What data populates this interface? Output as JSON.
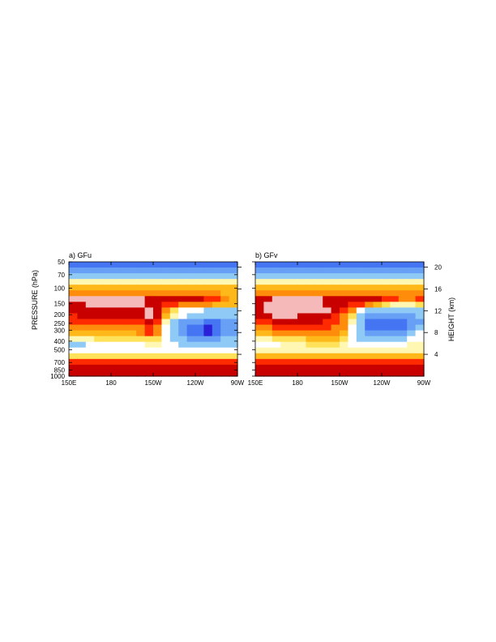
{
  "chart_data": [
    {
      "type": "heatmap",
      "panel_label": "a) GFu",
      "x_ticks": [
        "150E",
        "180",
        "150W",
        "120W",
        "90W"
      ],
      "left_axis": {
        "label": "PRESSURE (hPa)",
        "ticks": [
          "50",
          "70",
          "100",
          "150",
          "200",
          "250",
          "300",
          "400",
          "500",
          "700",
          "850",
          "1000"
        ]
      },
      "levels": [
        "#2a20d8",
        "#4575f2",
        "#67a0f5",
        "#8fcaf6",
        "#ffffff",
        "#fff7b2",
        "#ffe25a",
        "#ffb81a",
        "#ff8c0a",
        "#ff2a00",
        "#c80000",
        "#f5b9b9"
      ],
      "field": [
        [
          1,
          1,
          1,
          1,
          1,
          1,
          1,
          1,
          1,
          1,
          1,
          1,
          1,
          1,
          1,
          1,
          1,
          1,
          1,
          1
        ],
        [
          2,
          2,
          2,
          2,
          2,
          2,
          2,
          2,
          2,
          2,
          2,
          2,
          2,
          2,
          2,
          2,
          2,
          2,
          2,
          2
        ],
        [
          3,
          3,
          3,
          3,
          3,
          3,
          3,
          3,
          3,
          3,
          3,
          3,
          3,
          3,
          3,
          3,
          3,
          3,
          3,
          3
        ],
        [
          5,
          5,
          5,
          5,
          5,
          5,
          5,
          5,
          5,
          5,
          5,
          5,
          5,
          5,
          5,
          5,
          5,
          5,
          5,
          5
        ],
        [
          7,
          7,
          7,
          7,
          7,
          7,
          7,
          7,
          7,
          7,
          7,
          7,
          7,
          7,
          7,
          7,
          7,
          7,
          7,
          7
        ],
        [
          8,
          8,
          8,
          8,
          8,
          8,
          8,
          8,
          8,
          8,
          8,
          8,
          8,
          8,
          8,
          8,
          8,
          8,
          7,
          7
        ],
        [
          11,
          11,
          11,
          11,
          11,
          11,
          11,
          11,
          11,
          10,
          10,
          10,
          10,
          10,
          10,
          10,
          9,
          9,
          8,
          7
        ],
        [
          10,
          10,
          11,
          11,
          11,
          11,
          11,
          11,
          11,
          10,
          10,
          9,
          9,
          8,
          8,
          8,
          8,
          7,
          7,
          7
        ],
        [
          10,
          10,
          10,
          10,
          10,
          10,
          10,
          10,
          10,
          11,
          10,
          8,
          6,
          4,
          4,
          4,
          3,
          3,
          3,
          3
        ],
        [
          9,
          10,
          10,
          10,
          10,
          10,
          10,
          10,
          10,
          11,
          10,
          7,
          5,
          4,
          3,
          3,
          3,
          3,
          3,
          3
        ],
        [
          9,
          9,
          9,
          9,
          9,
          9,
          9,
          9,
          9,
          10,
          9,
          5,
          3,
          2,
          2,
          2,
          1,
          1,
          2,
          2
        ],
        [
          8,
          8,
          8,
          8,
          8,
          8,
          8,
          8,
          8,
          9,
          8,
          4,
          3,
          2,
          1,
          1,
          0,
          1,
          2,
          2
        ],
        [
          7,
          7,
          7,
          7,
          7,
          7,
          7,
          7,
          8,
          9,
          8,
          4,
          3,
          2,
          1,
          1,
          0,
          1,
          2,
          2
        ],
        [
          5,
          5,
          5,
          6,
          6,
          6,
          6,
          6,
          6,
          6,
          6,
          4,
          3,
          3,
          2,
          2,
          2,
          2,
          3,
          3
        ],
        [
          3,
          3,
          4,
          4,
          4,
          4,
          4,
          4,
          4,
          5,
          5,
          4,
          4,
          3,
          3,
          3,
          3,
          3,
          3,
          3
        ],
        [
          4,
          4,
          4,
          4,
          4,
          4,
          4,
          4,
          4,
          4,
          4,
          4,
          4,
          4,
          4,
          4,
          4,
          4,
          4,
          4
        ],
        [
          6,
          6,
          6,
          6,
          6,
          6,
          6,
          6,
          6,
          6,
          6,
          6,
          6,
          6,
          6,
          6,
          6,
          6,
          6,
          6
        ],
        [
          9,
          9,
          9,
          9,
          9,
          9,
          9,
          9,
          9,
          9,
          9,
          9,
          9,
          9,
          9,
          9,
          9,
          9,
          9,
          9
        ],
        [
          10,
          10,
          10,
          10,
          10,
          10,
          10,
          10,
          10,
          10,
          10,
          10,
          10,
          10,
          10,
          10,
          10,
          10,
          10,
          10
        ],
        [
          10,
          10,
          10,
          10,
          10,
          10,
          10,
          10,
          10,
          10,
          10,
          10,
          10,
          10,
          10,
          10,
          10,
          10,
          10,
          10
        ]
      ]
    },
    {
      "type": "heatmap",
      "panel_label": "b) GFv",
      "x_ticks": [
        "150E",
        "180",
        "150W",
        "120W",
        "90W"
      ],
      "right_axis": {
        "label": "HEIGHT (km)",
        "ticks": [
          "20",
          "16",
          "12",
          "8",
          "4"
        ]
      },
      "levels": [
        "#2a20d8",
        "#4575f2",
        "#67a0f5",
        "#8fcaf6",
        "#ffffff",
        "#fff7b2",
        "#ffe25a",
        "#ffb81a",
        "#ff8c0a",
        "#ff2a00",
        "#c80000",
        "#f5b9b9"
      ],
      "field": [
        [
          1,
          1,
          1,
          1,
          1,
          1,
          1,
          1,
          1,
          1,
          1,
          1,
          1,
          1,
          1,
          1,
          1,
          1,
          1,
          1
        ],
        [
          2,
          2,
          2,
          2,
          2,
          2,
          2,
          2,
          2,
          2,
          2,
          2,
          2,
          2,
          2,
          2,
          2,
          2,
          2,
          2
        ],
        [
          3,
          3,
          3,
          3,
          3,
          3,
          3,
          3,
          3,
          3,
          3,
          3,
          3,
          3,
          3,
          3,
          3,
          3,
          3,
          3
        ],
        [
          5,
          5,
          5,
          5,
          5,
          5,
          5,
          5,
          5,
          5,
          5,
          5,
          5,
          5,
          5,
          5,
          5,
          5,
          5,
          5
        ],
        [
          7,
          7,
          7,
          7,
          7,
          7,
          7,
          7,
          7,
          7,
          7,
          7,
          7,
          7,
          7,
          7,
          7,
          7,
          7,
          7
        ],
        [
          8,
          8,
          8,
          8,
          8,
          8,
          8,
          8,
          8,
          8,
          8,
          8,
          8,
          8,
          8,
          8,
          8,
          8,
          8,
          8
        ],
        [
          10,
          10,
          11,
          11,
          11,
          11,
          11,
          11,
          10,
          10,
          10,
          10,
          10,
          10,
          10,
          9,
          9,
          8,
          8,
          9
        ],
        [
          10,
          11,
          11,
          11,
          11,
          11,
          11,
          11,
          10,
          10,
          10,
          9,
          9,
          8,
          7,
          6,
          5,
          5,
          5,
          6
        ],
        [
          10,
          11,
          11,
          11,
          11,
          11,
          11,
          11,
          11,
          10,
          9,
          8,
          4,
          3,
          3,
          3,
          3,
          3,
          3,
          3
        ],
        [
          10,
          10,
          11,
          11,
          11,
          10,
          10,
          10,
          10,
          9,
          8,
          6,
          3,
          2,
          2,
          2,
          2,
          2,
          2,
          3
        ],
        [
          9,
          9,
          10,
          10,
          10,
          10,
          10,
          10,
          9,
          9,
          8,
          5,
          3,
          1,
          1,
          1,
          1,
          1,
          2,
          2
        ],
        [
          8,
          8,
          9,
          9,
          9,
          9,
          9,
          9,
          9,
          8,
          8,
          4,
          3,
          1,
          1,
          1,
          1,
          1,
          2,
          3
        ],
        [
          7,
          7,
          8,
          8,
          8,
          8,
          8,
          8,
          8,
          8,
          7,
          4,
          3,
          2,
          2,
          2,
          2,
          2,
          3,
          4
        ],
        [
          5,
          5,
          6,
          6,
          6,
          6,
          7,
          7,
          7,
          7,
          6,
          4,
          3,
          3,
          3,
          3,
          3,
          3,
          4,
          4
        ],
        [
          4,
          4,
          4,
          5,
          5,
          5,
          6,
          6,
          6,
          6,
          5,
          4,
          4,
          4,
          4,
          4,
          4,
          4,
          5,
          5
        ],
        [
          5,
          5,
          5,
          5,
          5,
          5,
          5,
          5,
          5,
          5,
          5,
          5,
          5,
          5,
          5,
          5,
          5,
          5,
          5,
          5
        ],
        [
          7,
          7,
          7,
          7,
          7,
          7,
          7,
          7,
          7,
          7,
          7,
          7,
          7,
          7,
          7,
          7,
          7,
          7,
          7,
          7
        ],
        [
          9,
          9,
          9,
          9,
          9,
          9,
          9,
          9,
          9,
          9,
          9,
          9,
          9,
          9,
          9,
          9,
          9,
          9,
          9,
          9
        ],
        [
          10,
          10,
          10,
          10,
          10,
          10,
          10,
          10,
          10,
          10,
          10,
          10,
          10,
          10,
          10,
          10,
          10,
          10,
          10,
          10
        ],
        [
          10,
          10,
          10,
          10,
          10,
          10,
          10,
          10,
          10,
          10,
          10,
          10,
          10,
          10,
          10,
          10,
          10,
          10,
          10,
          10
        ]
      ]
    }
  ]
}
